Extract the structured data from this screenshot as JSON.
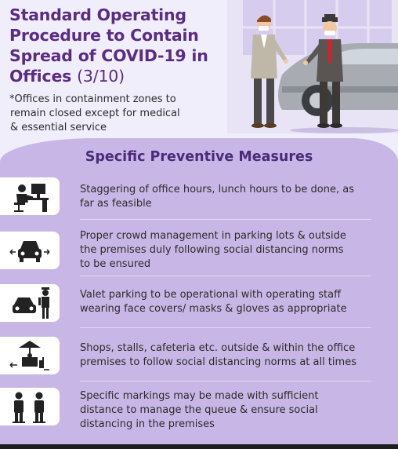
{
  "header": {
    "title_line1": "Standard Operating",
    "title_line2": "Procedure to Contain",
    "title_line3": "Spread of COVID-19 in",
    "title_line4": "Offices",
    "page_indicator": "(3/10)",
    "note_line1": "*Offices in containment zones to",
    "note_line2": "remain closed except for medical",
    "note_line3": "& essential service"
  },
  "section": {
    "title": "Specific Preventive Measures",
    "items": [
      {
        "icon": "office-desk-icon",
        "lines": [
          "Staggering of office hours, lunch hours to be done, as",
          "far as feasible"
        ]
      },
      {
        "icon": "car-parking-icon",
        "lines": [
          "Proper crowd management in parking lots & outside",
          "the premises duly following social distancing norms",
          "to be ensured"
        ]
      },
      {
        "icon": "valet-parking-icon",
        "lines": [
          "Valet parking to be operational with operating staff",
          "wearing face covers/ masks & gloves as appropriate"
        ]
      },
      {
        "icon": "shop-stall-icon",
        "lines": [
          "Shops, stalls, cafeteria etc. outside & within the office",
          "premises to follow social distancing norms at all times"
        ]
      },
      {
        "icon": "queue-distancing-icon",
        "lines": [
          "Specific markings may be made with sufficient",
          "distance to manage the queue & ensure social",
          "distancing in the premises"
        ]
      }
    ]
  },
  "colors": {
    "title": "#5a2c82",
    "panel": "#c8b7e6",
    "background": "#f1eefb",
    "text": "#2b2b2b"
  }
}
